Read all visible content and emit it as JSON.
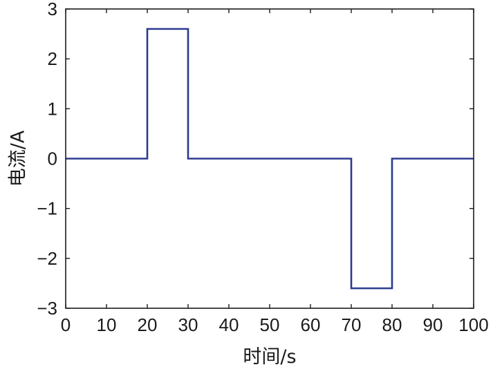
{
  "chart_data": {
    "type": "line",
    "title": "",
    "xlabel": "时间/s",
    "ylabel": "电流/A",
    "xlim": [
      0,
      100
    ],
    "ylim": [
      -3,
      3
    ],
    "xticks": [
      0,
      10,
      20,
      30,
      40,
      50,
      60,
      70,
      80,
      90,
      100
    ],
    "yticks": [
      3,
      2,
      1,
      0,
      -1,
      -2,
      -3
    ],
    "ytick_labels": [
      "3",
      "2",
      "1",
      "0",
      "−1",
      "−2",
      "−3"
    ],
    "grid": false,
    "line_color": "#2b3a8f",
    "series": [
      {
        "x": [
          0,
          20,
          20,
          30,
          30,
          70,
          70,
          80,
          80,
          100
        ],
        "y": [
          0,
          0,
          2.6,
          2.6,
          0,
          0,
          -2.6,
          -2.6,
          0,
          0
        ]
      }
    ]
  }
}
